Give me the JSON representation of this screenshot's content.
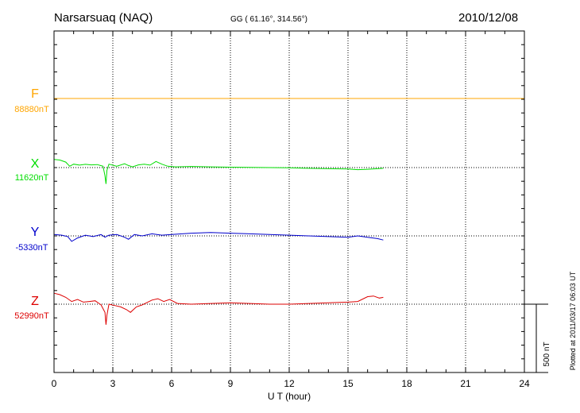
{
  "header": {
    "station": "Narsarsuaq (NAQ)",
    "coords": "GG ( 61.16°, 314.56°)",
    "date": "2010/12/08"
  },
  "plotted_note": "Plotted at 2011/03/17 06:03 UT",
  "scale_bar_label": "500 nT",
  "chart_data": {
    "type": "line",
    "xlabel": "U T (hour)",
    "xlim": [
      0,
      24
    ],
    "xticks": [
      0,
      3,
      6,
      9,
      12,
      15,
      18,
      21,
      24
    ],
    "xtick_labels": [
      "0",
      "3",
      "6",
      "9",
      "12",
      "15",
      "18",
      "21",
      "24"
    ],
    "scale_nT": 500,
    "grid": true,
    "series": [
      {
        "name": "F",
        "baseline_label": "88880nT",
        "color": "#FFA500",
        "x": [
          0,
          24
        ],
        "y": [
          0,
          0
        ]
      },
      {
        "name": "X",
        "baseline_label": "11620nT",
        "color": "#00DD00",
        "x": [
          0,
          0.3,
          0.6,
          0.8,
          1.0,
          1.3,
          1.6,
          1.9,
          2.2,
          2.5,
          2.6,
          2.65,
          2.7,
          2.8,
          3.2,
          3.6,
          3.8,
          4.0,
          4.3,
          4.6,
          4.9,
          5.2,
          5.5,
          5.8,
          6.2,
          7,
          8,
          9,
          10,
          11,
          12,
          13,
          14,
          15,
          15.5,
          16,
          16.5,
          16.8
        ],
        "y": [
          60,
          55,
          40,
          10,
          25,
          18,
          24,
          20,
          22,
          10,
          -60,
          -120,
          -20,
          25,
          10,
          28,
          15,
          5,
          20,
          25,
          18,
          45,
          25,
          10,
          5,
          8,
          5,
          3,
          2,
          0,
          -2,
          -5,
          -8,
          -10,
          -15,
          -12,
          -8,
          -5
        ]
      },
      {
        "name": "Y",
        "baseline_label": "-5330nT",
        "color": "#0000CC",
        "x": [
          0,
          0.4,
          0.7,
          0.9,
          1.2,
          1.6,
          2.0,
          2.4,
          2.6,
          2.8,
          3.2,
          3.6,
          3.8,
          4.1,
          4.5,
          5.0,
          5.5,
          6.0,
          7,
          8,
          9,
          10,
          11,
          12,
          13,
          14,
          15,
          15.5,
          16,
          16.5,
          16.8
        ],
        "y": [
          10,
          5,
          -5,
          -40,
          -15,
          5,
          -5,
          10,
          -10,
          5,
          10,
          -10,
          -25,
          10,
          0,
          15,
          5,
          10,
          20,
          25,
          20,
          15,
          10,
          5,
          0,
          -5,
          -10,
          0,
          -10,
          -20,
          -30
        ]
      },
      {
        "name": "Z",
        "baseline_label": "52990nT",
        "color": "#DD0000",
        "x": [
          0,
          0.3,
          0.6,
          0.9,
          1.2,
          1.5,
          1.8,
          2.1,
          2.4,
          2.6,
          2.65,
          2.7,
          2.8,
          3.1,
          3.4,
          3.7,
          3.9,
          4.2,
          4.5,
          5.0,
          5.3,
          5.6,
          5.9,
          6.3,
          7,
          8,
          9,
          10,
          11,
          12,
          13,
          14,
          15,
          15.5,
          16,
          16.3,
          16.6,
          16.8
        ],
        "y": [
          80,
          70,
          50,
          20,
          35,
          15,
          20,
          25,
          -5,
          -60,
          -150,
          -80,
          0,
          -10,
          -20,
          -40,
          -60,
          -20,
          -5,
          30,
          40,
          20,
          35,
          5,
          0,
          5,
          10,
          5,
          0,
          0,
          5,
          10,
          15,
          20,
          55,
          60,
          45,
          50
        ]
      }
    ]
  }
}
